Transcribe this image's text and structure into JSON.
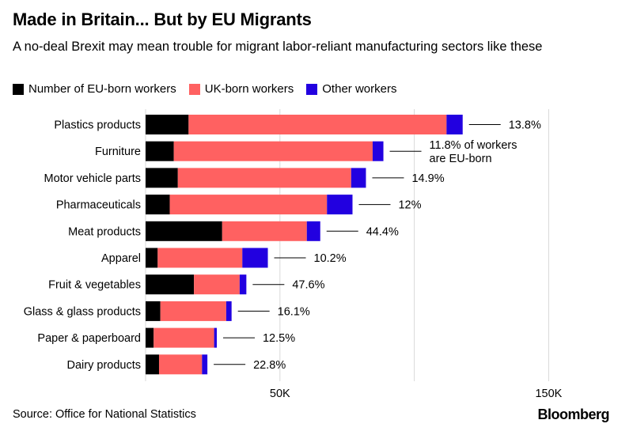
{
  "header": {
    "title": "Made in Britain... But by EU Migrants",
    "subtitle": "A no-deal Brexit may mean trouble for migrant labor-reliant manufacturing sectors like these"
  },
  "footer": {
    "source": "Source: Office for National Statistics",
    "brand": "Bloomberg"
  },
  "colors": {
    "eu": "#000000",
    "uk": "#ff6161",
    "other": "#2200e0",
    "grid": "#d9d9d9",
    "leader": "#000000"
  },
  "chart_data": {
    "type": "bar",
    "orientation": "horizontal",
    "stacked": true,
    "categories": [
      "Plastics products",
      "Furniture",
      "Motor vehicle parts",
      "Pharmaceuticals",
      "Meat products",
      "Apparel",
      "Fruit & vegetables",
      "Glass & glass products",
      "Paper & paperboard",
      "Dairy products"
    ],
    "series": [
      {
        "name": "Number of EU-born workers",
        "color": "#000000",
        "values": [
          16000,
          10500,
          12000,
          9000,
          28500,
          4500,
          18000,
          5500,
          3000,
          5000
        ]
      },
      {
        "name": "UK-born workers",
        "color": "#ff6161",
        "values": [
          96000,
          74000,
          64500,
          58500,
          31500,
          31500,
          17000,
          24500,
          22500,
          16000
        ]
      },
      {
        "name": "Other workers",
        "color": "#2200e0",
        "values": [
          6000,
          4000,
          5500,
          9500,
          5000,
          9500,
          2500,
          2000,
          1000,
          2000
        ]
      }
    ],
    "annotations": [
      "13.8%",
      [
        "11.8% of workers",
        "are EU-born"
      ],
      "14.9%",
      "12%",
      "44.4%",
      "10.2%",
      "47.6%",
      "16.1%",
      "12.5%",
      "22.8%"
    ],
    "xticks": [
      {
        "value": 50000,
        "label": "50K"
      },
      {
        "value": 150000,
        "label": "150K"
      }
    ],
    "gridlines": [
      50000,
      100000,
      150000
    ],
    "xlim": [
      0,
      165000
    ],
    "grid": true,
    "legend_placement": "top-left"
  }
}
